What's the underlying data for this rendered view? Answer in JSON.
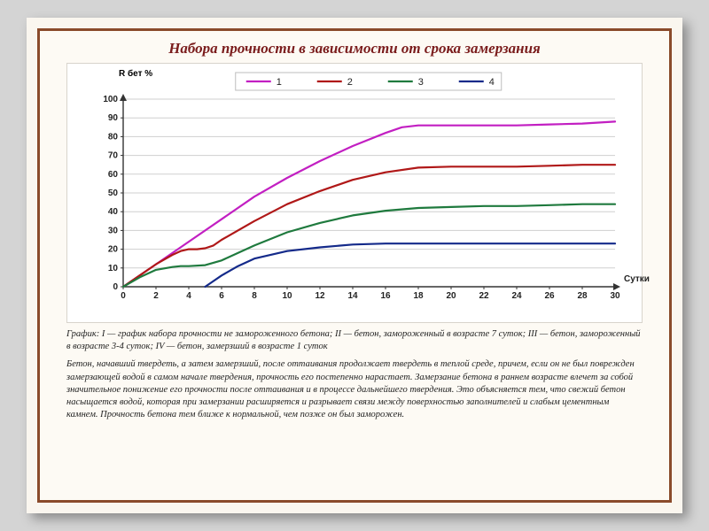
{
  "title": "Набора прочности в зависимости от срока замерзания",
  "chart": {
    "type": "line",
    "background_color": "#ffffff",
    "grid_color": "#cfcfcf",
    "axis_color": "#333333",
    "ylabel": "R бет %",
    "xlabel": "Сутки",
    "xlim": [
      0,
      30
    ],
    "ylim": [
      0,
      100
    ],
    "xtick_step": 2,
    "ytick_step": 10,
    "xticks": [
      0,
      2,
      4,
      6,
      8,
      10,
      12,
      14,
      16,
      18,
      20,
      22,
      24,
      26,
      28,
      30
    ],
    "yticks": [
      0,
      10,
      20,
      30,
      40,
      50,
      60,
      70,
      80,
      90,
      100
    ],
    "line_width": 2.2,
    "series": [
      {
        "id": "1",
        "label": "1",
        "color": "#c21fc2",
        "points": [
          [
            0,
            0
          ],
          [
            2,
            12
          ],
          [
            4,
            24
          ],
          [
            6,
            36
          ],
          [
            8,
            48
          ],
          [
            10,
            58
          ],
          [
            12,
            67
          ],
          [
            14,
            75
          ],
          [
            16,
            82
          ],
          [
            17,
            85
          ],
          [
            18,
            86
          ],
          [
            20,
            86
          ],
          [
            22,
            86
          ],
          [
            24,
            86
          ],
          [
            26,
            86.5
          ],
          [
            28,
            87
          ],
          [
            30,
            88
          ]
        ]
      },
      {
        "id": "2",
        "label": "2",
        "color": "#b01818",
        "points": [
          [
            0,
            0
          ],
          [
            1,
            6
          ],
          [
            2,
            12
          ],
          [
            3,
            17
          ],
          [
            3.5,
            19
          ],
          [
            4,
            20
          ],
          [
            4.5,
            20
          ],
          [
            5,
            20.5
          ],
          [
            5.5,
            22
          ],
          [
            6,
            25
          ],
          [
            8,
            35
          ],
          [
            10,
            44
          ],
          [
            12,
            51
          ],
          [
            14,
            57
          ],
          [
            16,
            61
          ],
          [
            18,
            63.5
          ],
          [
            20,
            64
          ],
          [
            22,
            64
          ],
          [
            24,
            64
          ],
          [
            26,
            64.5
          ],
          [
            28,
            65
          ],
          [
            30,
            65
          ]
        ]
      },
      {
        "id": "3",
        "label": "3",
        "color": "#1f7a3e",
        "points": [
          [
            0,
            0
          ],
          [
            1,
            5
          ],
          [
            2,
            9
          ],
          [
            3,
            10.5
          ],
          [
            3.5,
            11
          ],
          [
            4,
            11
          ],
          [
            5,
            11.5
          ],
          [
            6,
            14
          ],
          [
            8,
            22
          ],
          [
            10,
            29
          ],
          [
            12,
            34
          ],
          [
            14,
            38
          ],
          [
            16,
            40.5
          ],
          [
            18,
            42
          ],
          [
            20,
            42.5
          ],
          [
            22,
            43
          ],
          [
            24,
            43
          ],
          [
            26,
            43.5
          ],
          [
            28,
            44
          ],
          [
            30,
            44
          ]
        ]
      },
      {
        "id": "4",
        "label": "4",
        "color": "#142a8a",
        "points": [
          [
            5,
            0
          ],
          [
            5.5,
            3
          ],
          [
            6,
            6
          ],
          [
            7,
            11
          ],
          [
            8,
            15
          ],
          [
            10,
            19
          ],
          [
            12,
            21
          ],
          [
            14,
            22.5
          ],
          [
            16,
            23
          ],
          [
            18,
            23
          ],
          [
            20,
            23
          ],
          [
            22,
            23
          ],
          [
            24,
            23
          ],
          [
            26,
            23
          ],
          [
            28,
            23
          ],
          [
            30,
            23
          ]
        ]
      }
    ],
    "legend_position": "top"
  },
  "caption": "График: I — график набора прочности не замороженного бетона; II — бетон, замороженный в возрасте 7 суток; III — бетон, замороженный в возрасте 3-4 суток; IV — бетон, замерзший в возрасте 1 суток",
  "body": "Бетон, начавший твердеть, а затем замерзший, после оттаивания продолжает твердеть в теплой среде, причем, если он не был поврежден замерзающей водой в самом начале твердения, прочность его постепенно нарастает. Замерзание бетона в раннем возрасте влечет за собой значительное понижение его прочности после оттаивания и в процессе дальнейшего твердения. Это объясняется тем, что свежий бетон насыщается водой, которая при замерзании расширяется и разрывает связи между поверхностью заполнителей и слабым цементным камнем. Прочность бетона тем ближе к нормальной, чем позже он был заморожен."
}
